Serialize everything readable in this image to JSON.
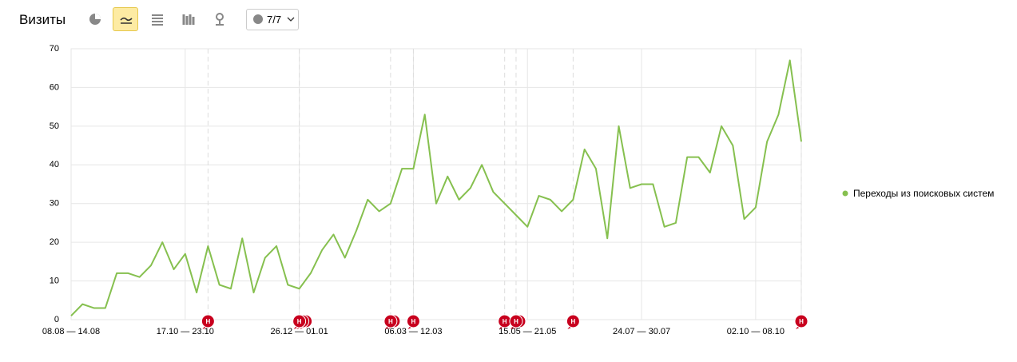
{
  "header": {
    "title": "Визиты",
    "notes_count": "7/7"
  },
  "chart_data": {
    "type": "line",
    "categories": [
      "08.08 — 14.08",
      null,
      null,
      null,
      null,
      null,
      null,
      null,
      null,
      null,
      "17.10 — 23.10",
      null,
      null,
      null,
      null,
      null,
      null,
      null,
      null,
      null,
      "26.12 — 01.01",
      null,
      null,
      null,
      null,
      null,
      null,
      null,
      null,
      null,
      "06.03 — 12.03",
      null,
      null,
      null,
      null,
      null,
      null,
      null,
      null,
      null,
      "15.05 — 21.05",
      null,
      null,
      null,
      null,
      null,
      null,
      null,
      null,
      null,
      "24.07 — 30.07",
      null,
      null,
      null,
      null,
      null,
      null,
      null,
      null,
      null,
      "02.10 — 08.10",
      null,
      null,
      null,
      null
    ],
    "series": [
      {
        "name": "Переходы из поисковых систем",
        "color": "#86c04f",
        "values": [
          1,
          4,
          3,
          3,
          12,
          12,
          11,
          14,
          20,
          13,
          17,
          7,
          19,
          9,
          8,
          21,
          7,
          16,
          19,
          9,
          8,
          12,
          18,
          22,
          16,
          23,
          31,
          28,
          30,
          39,
          39,
          53,
          30,
          37,
          31,
          34,
          40,
          33,
          30,
          27,
          24,
          32,
          31,
          28,
          31,
          44,
          39,
          21,
          50,
          34,
          35,
          35,
          24,
          25,
          42,
          42,
          38,
          50,
          45,
          26,
          29,
          46,
          53,
          67,
          46
        ]
      }
    ],
    "ylim": [
      0,
      70
    ],
    "yticks": [
      0,
      10,
      20,
      30,
      40,
      50,
      60,
      70
    ],
    "grid": true,
    "legend": "right",
    "annotations": [
      {
        "text": "Н",
        "at": 12
      },
      {
        "text": "Н",
        "at": 20
      },
      {
        "text": "Н",
        "at": 20
      },
      {
        "text": "Н",
        "at": 20
      },
      {
        "text": "Н",
        "at": 28
      },
      {
        "text": "Н",
        "at": 28
      },
      {
        "text": "Н",
        "at": 30
      },
      {
        "text": "Н",
        "at": 38
      },
      {
        "text": "Н",
        "at": 39
      },
      {
        "text": "Н",
        "at": 39
      },
      {
        "text": "Н",
        "at": 44
      },
      {
        "text": "Н",
        "at": 64
      }
    ]
  }
}
